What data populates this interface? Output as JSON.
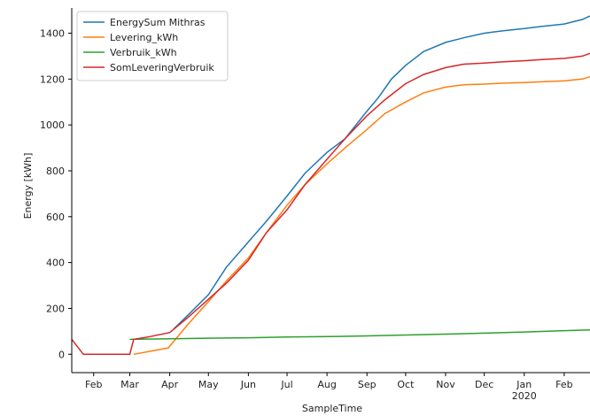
{
  "chart_data": {
    "type": "line",
    "title": "",
    "xlabel": "SampleTime",
    "ylabel": "Energy [kWh]",
    "x_tick_labels": [
      "Feb",
      "Mar",
      "Apr",
      "May",
      "Jun",
      "Jul",
      "Aug",
      "Sep",
      "Oct",
      "Nov",
      "Dec",
      "Jan",
      "Feb"
    ],
    "x_tick_sublabels": [
      "",
      "",
      "",
      "",
      "",
      "",
      "",
      "",
      "",
      "",
      "",
      "2020",
      ""
    ],
    "xlim": [
      "2019-01-15",
      "2020-02-21"
    ],
    "ylim": [
      -80,
      1510
    ],
    "y_ticks": [
      0,
      200,
      400,
      600,
      800,
      1000,
      1200,
      1400
    ],
    "grid": false,
    "legend_position": "top-left",
    "series": [
      {
        "name": "EnergySum Mithras",
        "color": "#1f77b4",
        "points": [
          [
            "2019-04-04",
            110
          ],
          [
            "2019-04-15",
            170
          ],
          [
            "2019-05-01",
            260
          ],
          [
            "2019-05-15",
            380
          ],
          [
            "2019-06-01",
            490
          ],
          [
            "2019-06-15",
            580
          ],
          [
            "2019-07-01",
            690
          ],
          [
            "2019-07-15",
            790
          ],
          [
            "2019-08-01",
            880
          ],
          [
            "2019-08-15",
            940
          ],
          [
            "2019-09-01",
            1060
          ],
          [
            "2019-09-10",
            1120
          ],
          [
            "2019-09-20",
            1200
          ],
          [
            "2019-10-01",
            1260
          ],
          [
            "2019-10-15",
            1320
          ],
          [
            "2019-11-01",
            1360
          ],
          [
            "2019-11-15",
            1380
          ],
          [
            "2019-12-01",
            1400
          ],
          [
            "2019-12-15",
            1410
          ],
          [
            "2020-01-01",
            1420
          ],
          [
            "2020-01-15",
            1430
          ],
          [
            "2020-02-01",
            1440
          ],
          [
            "2020-02-15",
            1460
          ],
          [
            "2020-02-21",
            1475
          ]
        ]
      },
      {
        "name": "Levering_kWh",
        "color": "#ff7f0e",
        "points": [
          [
            "2019-03-04",
            0
          ],
          [
            "2019-03-31",
            28
          ],
          [
            "2019-04-15",
            130
          ],
          [
            "2019-05-01",
            230
          ],
          [
            "2019-05-15",
            320
          ],
          [
            "2019-06-01",
            420
          ],
          [
            "2019-06-15",
            530
          ],
          [
            "2019-07-01",
            650
          ],
          [
            "2019-07-15",
            740
          ],
          [
            "2019-08-01",
            830
          ],
          [
            "2019-08-15",
            900
          ],
          [
            "2019-09-01",
            980
          ],
          [
            "2019-09-15",
            1050
          ],
          [
            "2019-10-01",
            1100
          ],
          [
            "2019-10-15",
            1140
          ],
          [
            "2019-11-01",
            1165
          ],
          [
            "2019-11-15",
            1175
          ],
          [
            "2019-12-01",
            1178
          ],
          [
            "2019-12-15",
            1182
          ],
          [
            "2020-01-01",
            1185
          ],
          [
            "2020-01-15",
            1188
          ],
          [
            "2020-02-01",
            1192
          ],
          [
            "2020-02-15",
            1200
          ],
          [
            "2020-02-21",
            1210
          ]
        ]
      },
      {
        "name": "Verbruik_kWh",
        "color": "#2ca02c",
        "points": [
          [
            "2019-03-01",
            65
          ],
          [
            "2019-04-01",
            68
          ],
          [
            "2019-05-01",
            70
          ],
          [
            "2019-06-01",
            72
          ],
          [
            "2019-07-01",
            75
          ],
          [
            "2019-08-01",
            77
          ],
          [
            "2019-09-01",
            80
          ],
          [
            "2019-10-01",
            84
          ],
          [
            "2019-11-01",
            88
          ],
          [
            "2019-12-01",
            92
          ],
          [
            "2020-01-01",
            97
          ],
          [
            "2020-02-01",
            103
          ],
          [
            "2020-02-21",
            106
          ]
        ]
      },
      {
        "name": "SomLeveringVerbruik",
        "color": "#d62728",
        "points": [
          [
            "2019-01-15",
            65
          ],
          [
            "2019-01-24",
            0
          ],
          [
            "2019-02-05",
            0
          ],
          [
            "2019-02-20",
            0
          ],
          [
            "2019-03-01",
            0
          ],
          [
            "2019-03-04",
            65
          ],
          [
            "2019-03-15",
            75
          ],
          [
            "2019-04-01",
            95
          ],
          [
            "2019-04-15",
            160
          ],
          [
            "2019-05-01",
            240
          ],
          [
            "2019-05-15",
            310
          ],
          [
            "2019-06-01",
            410
          ],
          [
            "2019-06-15",
            530
          ],
          [
            "2019-07-01",
            630
          ],
          [
            "2019-07-15",
            740
          ],
          [
            "2019-08-01",
            850
          ],
          [
            "2019-08-15",
            940
          ],
          [
            "2019-09-01",
            1040
          ],
          [
            "2019-09-15",
            1110
          ],
          [
            "2019-10-01",
            1180
          ],
          [
            "2019-10-15",
            1220
          ],
          [
            "2019-11-01",
            1250
          ],
          [
            "2019-11-15",
            1265
          ],
          [
            "2019-12-01",
            1270
          ],
          [
            "2019-12-15",
            1275
          ],
          [
            "2020-01-01",
            1280
          ],
          [
            "2020-01-15",
            1285
          ],
          [
            "2020-02-01",
            1290
          ],
          [
            "2020-02-15",
            1300
          ],
          [
            "2020-02-21",
            1312
          ]
        ]
      }
    ]
  }
}
